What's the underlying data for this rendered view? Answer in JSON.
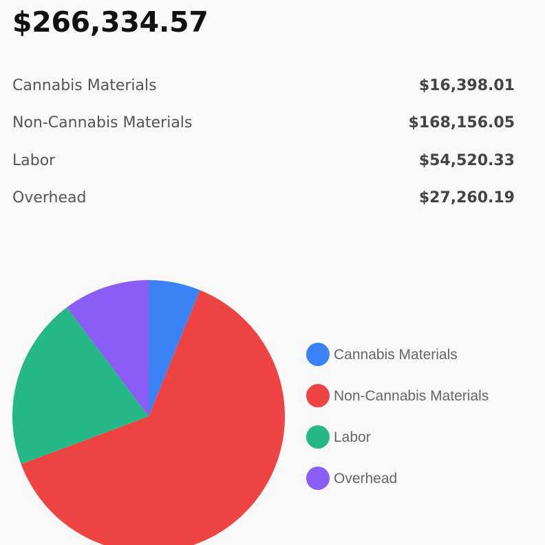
{
  "summary": {
    "total": "$266,334.57",
    "rows": [
      {
        "label": "Cannabis Materials",
        "value": "$16,398.01"
      },
      {
        "label": "Non-Cannabis Materials",
        "value": "$168,156.05"
      },
      {
        "label": "Labor",
        "value": "$54,520.33"
      },
      {
        "label": "Overhead",
        "value": "$27,260.19"
      }
    ]
  },
  "chart_data": {
    "type": "pie",
    "categories": [
      "Cannabis Materials",
      "Non-Cannabis Materials",
      "Labor",
      "Overhead"
    ],
    "values": [
      16398.01,
      168156.05,
      54520.33,
      27260.19
    ],
    "colors": [
      "#3b82f6",
      "#ef4444",
      "#25b886",
      "#8b5cf6"
    ],
    "legend": "right",
    "start_angle": "12 o'clock",
    "direction": "clockwise"
  }
}
